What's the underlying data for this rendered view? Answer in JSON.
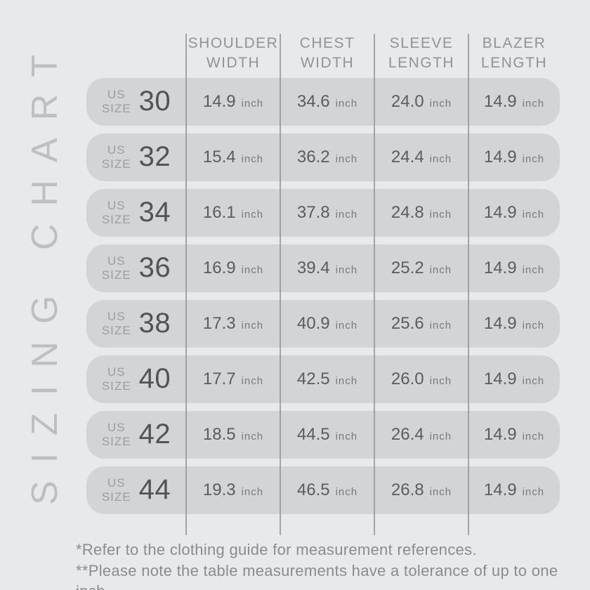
{
  "page": {
    "background_color": "#e8e9ea",
    "row_pill_color": "#d2d4d5"
  },
  "title": {
    "vertical_label": "SIZING CHART"
  },
  "table": {
    "column_headers": [
      "SHOULDER\nWIDTH",
      "CHEST\nWIDTH",
      "SLEEVE\nLENGTH",
      "BLAZER\nLENGTH"
    ],
    "size_prefix": {
      "line1": "US",
      "line2": "SIZE"
    },
    "unit": "inch",
    "rows": [
      {
        "size": "30",
        "shoulder_width": "14.9",
        "chest_width": "34.6",
        "sleeve_length": "24.0",
        "blazer_length": "14.9"
      },
      {
        "size": "32",
        "shoulder_width": "15.4",
        "chest_width": "36.2",
        "sleeve_length": "24.4",
        "blazer_length": "14.9"
      },
      {
        "size": "34",
        "shoulder_width": "16.1",
        "chest_width": "37.8",
        "sleeve_length": "24.8",
        "blazer_length": "14.9"
      },
      {
        "size": "36",
        "shoulder_width": "16.9",
        "chest_width": "39.4",
        "sleeve_length": "25.2",
        "blazer_length": "14.9"
      },
      {
        "size": "38",
        "shoulder_width": "17.3",
        "chest_width": "40.9",
        "sleeve_length": "25.6",
        "blazer_length": "14.9"
      },
      {
        "size": "40",
        "shoulder_width": "17.7",
        "chest_width": "42.5",
        "sleeve_length": "26.0",
        "blazer_length": "14.9"
      },
      {
        "size": "42",
        "shoulder_width": "18.5",
        "chest_width": "44.5",
        "sleeve_length": "26.4",
        "blazer_length": "14.9"
      },
      {
        "size": "44",
        "shoulder_width": "19.3",
        "chest_width": "46.5",
        "sleeve_length": "26.8",
        "blazer_length": "14.9"
      }
    ]
  },
  "footnotes": [
    "*Refer to the clothing guide for measurement references.",
    "**Please note the table measurements have a tolerance of up to one inch."
  ]
}
